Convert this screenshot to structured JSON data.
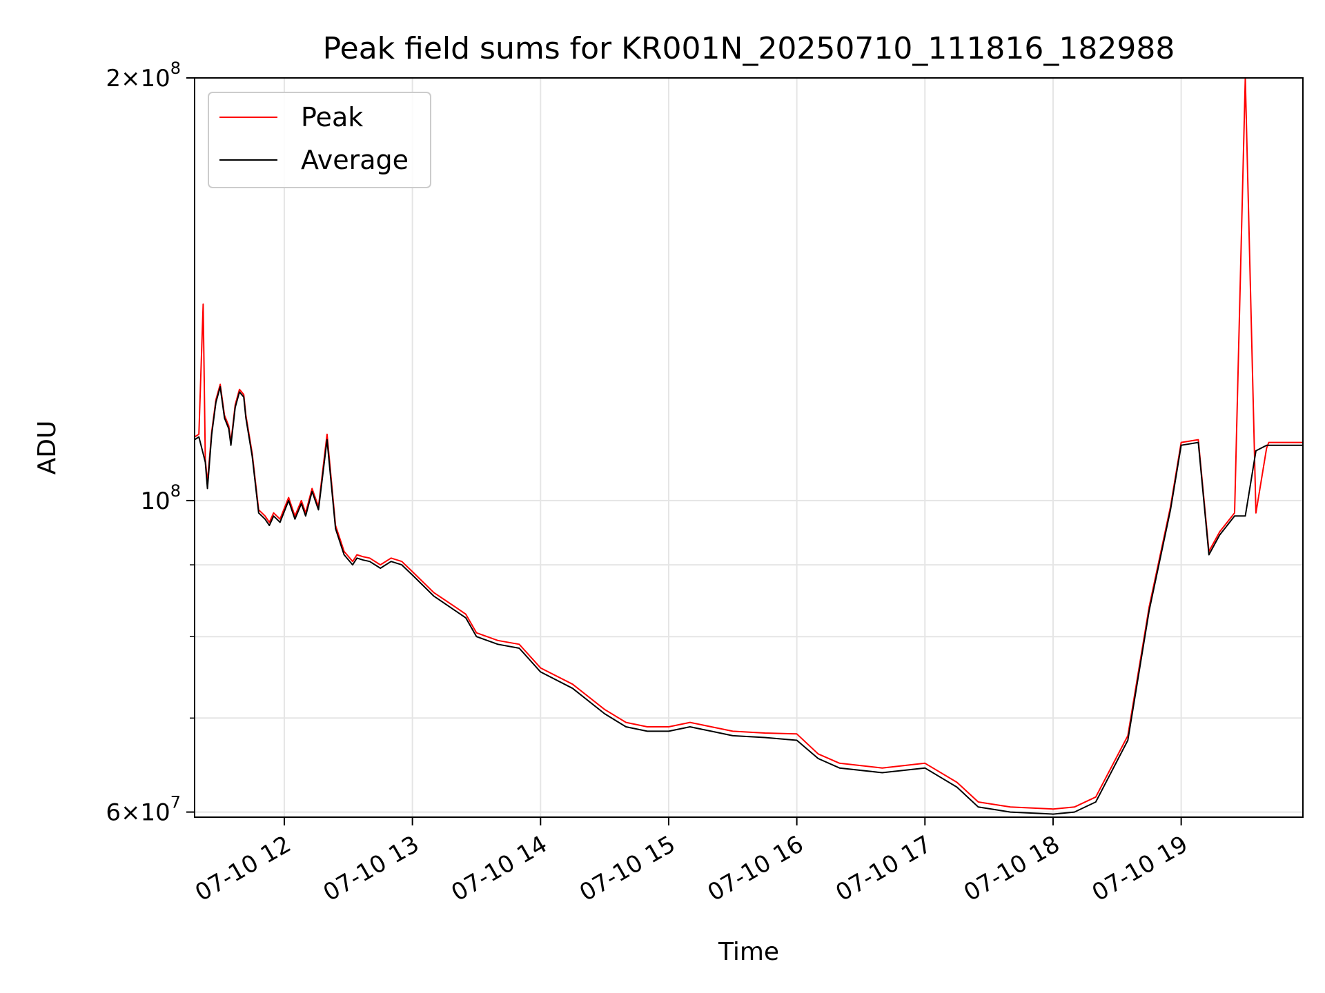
{
  "chart_data": {
    "type": "line",
    "title": "Peak field sums for KR001N_20250710_111816_182988",
    "xlabel": "Time",
    "ylabel": "ADU",
    "yscale": "log",
    "ylim": [
      59500000,
      200000000
    ],
    "xlim": [
      "07-10 11:18",
      "07-10 19:57"
    ],
    "x_ticks": [
      {
        "value": "07-10 12:00",
        "label": "07-10 12"
      },
      {
        "value": "07-10 13:00",
        "label": "07-10 13"
      },
      {
        "value": "07-10 14:00",
        "label": "07-10 14"
      },
      {
        "value": "07-10 15:00",
        "label": "07-10 15"
      },
      {
        "value": "07-10 16:00",
        "label": "07-10 16"
      },
      {
        "value": "07-10 17:00",
        "label": "07-10 17"
      },
      {
        "value": "07-10 18:00",
        "label": "07-10 18"
      },
      {
        "value": "07-10 19:00",
        "label": "07-10 19"
      }
    ],
    "y_ticks_major": [
      {
        "value": 60000000,
        "base": "6",
        "exp": "7"
      },
      {
        "value": 100000000,
        "base": "",
        "exp": "8"
      },
      {
        "value": 200000000,
        "base": "2",
        "exp": "8"
      }
    ],
    "y_ticks_minor": [
      70000000,
      80000000,
      90000000
    ],
    "grid": true,
    "legend_position": "top-left",
    "series": [
      {
        "name": "Peak",
        "color": "#ff0000",
        "x": [
          "07-10 11:18",
          "07-10 11:20",
          "07-10 11:22",
          "07-10 11:23",
          "07-10 11:24",
          "07-10 11:26",
          "07-10 11:28",
          "07-10 11:30",
          "07-10 11:32",
          "07-10 11:34",
          "07-10 11:35",
          "07-10 11:37",
          "07-10 11:39",
          "07-10 11:41",
          "07-10 11:42",
          "07-10 11:45",
          "07-10 11:48",
          "07-10 11:51",
          "07-10 11:53",
          "07-10 11:55",
          "07-10 11:58",
          "07-10 12:02",
          "07-10 12:05",
          "07-10 12:08",
          "07-10 12:10",
          "07-10 12:13",
          "07-10 12:16",
          "07-10 12:20",
          "07-10 12:24",
          "07-10 12:28",
          "07-10 12:32",
          "07-10 12:34",
          "07-10 12:37",
          "07-10 12:40",
          "07-10 12:45",
          "07-10 12:50",
          "07-10 12:55",
          "07-10 13:00",
          "07-10 13:10",
          "07-10 13:20",
          "07-10 13:25",
          "07-10 13:30",
          "07-10 13:40",
          "07-10 13:50",
          "07-10 14:00",
          "07-10 14:15",
          "07-10 14:30",
          "07-10 14:40",
          "07-10 14:50",
          "07-10 15:00",
          "07-10 15:10",
          "07-10 15:20",
          "07-10 15:30",
          "07-10 15:45",
          "07-10 16:00",
          "07-10 16:10",
          "07-10 16:20",
          "07-10 16:40",
          "07-10 17:00",
          "07-10 17:15",
          "07-10 17:25",
          "07-10 17:40",
          "07-10 18:00",
          "07-10 18:10",
          "07-10 18:20",
          "07-10 18:35",
          "07-10 18:45",
          "07-10 18:55",
          "07-10 19:00",
          "07-10 19:08",
          "07-10 19:13",
          "07-10 19:18",
          "07-10 19:25",
          "07-10 19:30",
          "07-10 19:35",
          "07-10 19:40",
          "07-10 19:41",
          "07-10 19:45",
          "07-10 19:50",
          "07-10 19:50",
          "07-10 19:50",
          "07-10 19:51",
          "07-10 19:55",
          "07-10 19:57"
        ],
        "values": [
          111000000,
          111500000,
          138000000,
          107000000,
          103000000,
          112000000,
          118000000,
          121000000,
          115000000,
          113000000,
          110000000,
          117000000,
          120000000,
          119000000,
          115000000,
          108000000,
          98500000,
          97500000,
          96500000,
          98000000,
          97000000,
          100500000,
          97500000,
          100000000,
          98000000,
          102000000,
          99000000,
          111500000,
          96000000,
          92000000,
          90500000,
          91500000,
          91200000,
          91000000,
          90000000,
          91000000,
          90500000,
          89000000,
          86000000,
          84000000,
          83000000,
          80500000,
          79500000,
          79000000,
          76000000,
          74000000,
          71000000,
          69500000,
          69000000,
          69000000,
          69500000,
          69000000,
          68500000,
          68300000,
          68200000,
          66000000,
          65000000,
          64500000,
          65000000,
          63000000,
          61000000,
          60500000,
          60300000,
          60500000,
          61500000,
          68000000,
          84000000,
          99000000,
          110000000,
          110500000,
          92000000,
          95000000,
          98000000,
          200000000,
          98000000,
          109000000,
          110000000,
          110000000,
          110000000,
          110000000,
          110000000,
          110000000,
          110000000,
          110000000
        ]
      },
      {
        "name": "Average",
        "color": "#000000",
        "x": [
          "07-10 11:18",
          "07-10 11:20",
          "07-10 11:22",
          "07-10 11:23",
          "07-10 11:24",
          "07-10 11:26",
          "07-10 11:28",
          "07-10 11:30",
          "07-10 11:32",
          "07-10 11:34",
          "07-10 11:35",
          "07-10 11:37",
          "07-10 11:39",
          "07-10 11:41",
          "07-10 11:42",
          "07-10 11:45",
          "07-10 11:48",
          "07-10 11:51",
          "07-10 11:53",
          "07-10 11:55",
          "07-10 11:58",
          "07-10 12:02",
          "07-10 12:05",
          "07-10 12:08",
          "07-10 12:10",
          "07-10 12:13",
          "07-10 12:16",
          "07-10 12:20",
          "07-10 12:24",
          "07-10 12:28",
          "07-10 12:32",
          "07-10 12:34",
          "07-10 12:37",
          "07-10 12:40",
          "07-10 12:45",
          "07-10 12:50",
          "07-10 12:55",
          "07-10 13:00",
          "07-10 13:10",
          "07-10 13:20",
          "07-10 13:25",
          "07-10 13:30",
          "07-10 13:40",
          "07-10 13:50",
          "07-10 14:00",
          "07-10 14:15",
          "07-10 14:30",
          "07-10 14:40",
          "07-10 14:50",
          "07-10 15:00",
          "07-10 15:10",
          "07-10 15:20",
          "07-10 15:30",
          "07-10 15:45",
          "07-10 16:00",
          "07-10 16:10",
          "07-10 16:20",
          "07-10 16:40",
          "07-10 17:00",
          "07-10 17:15",
          "07-10 17:25",
          "07-10 17:40",
          "07-10 18:00",
          "07-10 18:10",
          "07-10 18:20",
          "07-10 18:35",
          "07-10 18:45",
          "07-10 18:55",
          "07-10 19:00",
          "07-10 19:08",
          "07-10 19:13",
          "07-10 19:18",
          "07-10 19:25",
          "07-10 19:30",
          "07-10 19:35",
          "07-10 19:40",
          "07-10 19:45",
          "07-10 19:50",
          "07-10 19:55",
          "07-10 19:57"
        ],
        "values": [
          110500000,
          111000000,
          108000000,
          106500000,
          102000000,
          111500000,
          117500000,
          120500000,
          114500000,
          112500000,
          109500000,
          116500000,
          119500000,
          118500000,
          114500000,
          107500000,
          98000000,
          97000000,
          96000000,
          97500000,
          96500000,
          100000000,
          97000000,
          99500000,
          97500000,
          101500000,
          98500000,
          110500000,
          95500000,
          91500000,
          90000000,
          91000000,
          90700000,
          90500000,
          89500000,
          90500000,
          90000000,
          88500000,
          85500000,
          83500000,
          82500000,
          80000000,
          79000000,
          78500000,
          75500000,
          73500000,
          70500000,
          69000000,
          68500000,
          68500000,
          69000000,
          68500000,
          68000000,
          67800000,
          67500000,
          65500000,
          64500000,
          64000000,
          64500000,
          62500000,
          60500000,
          60000000,
          59800000,
          60000000,
          61000000,
          67500000,
          83500000,
          98500000,
          109500000,
          110000000,
          91500000,
          94500000,
          97500000,
          97500000,
          108500000,
          109500000,
          109500000,
          109500000,
          109500000,
          109500000
        ]
      }
    ]
  }
}
